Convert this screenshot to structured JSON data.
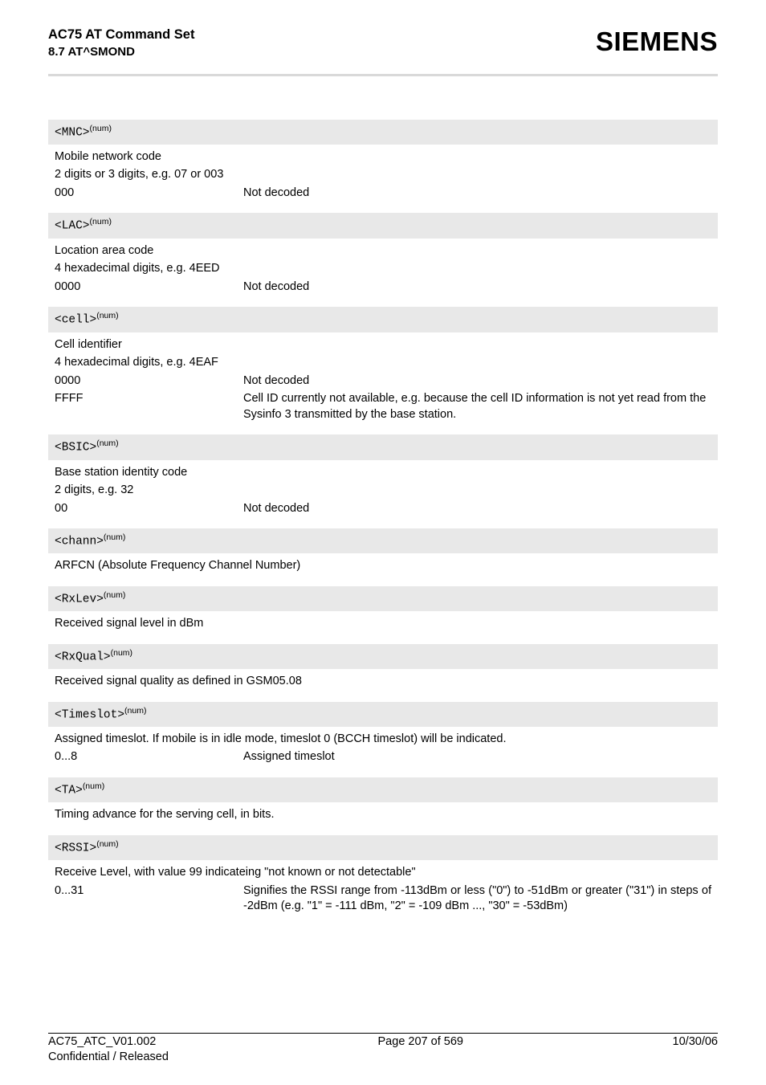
{
  "header": {
    "title": "AC75 AT Command Set",
    "subtitle": "8.7 AT^SMOND",
    "brand": "SIEMENS"
  },
  "colors": {
    "rule": "#d9d9d9",
    "param_head_bg": "#e8e8e8",
    "text": "#000000",
    "bg": "#ffffff"
  },
  "params": [
    {
      "tag": "<MNC>",
      "sup": "(num)",
      "lines": [
        "Mobile network code",
        "2 digits or 3 digits, e.g. 07 or 003"
      ],
      "rows": [
        {
          "k": "000",
          "v": "Not decoded"
        }
      ]
    },
    {
      "tag": "<LAC>",
      "sup": "(num)",
      "lines": [
        "Location area code",
        "4 hexadecimal digits, e.g. 4EED"
      ],
      "rows": [
        {
          "k": "0000",
          "v": "Not decoded"
        }
      ]
    },
    {
      "tag": "<cell>",
      "sup": "(num)",
      "lines": [
        "Cell identifier",
        "4 hexadecimal digits, e.g. 4EAF"
      ],
      "rows": [
        {
          "k": "0000",
          "v": "Not decoded"
        },
        {
          "k": "FFFF",
          "v": "Cell ID currently not available, e.g. because the cell ID information is not yet read from the Sysinfo 3 transmitted by the base station."
        }
      ]
    },
    {
      "tag": "<BSIC>",
      "sup": "(num)",
      "lines": [
        "Base station identity code",
        "2 digits, e.g. 32"
      ],
      "rows": [
        {
          "k": "00",
          "v": "Not decoded"
        }
      ]
    },
    {
      "tag": "<chann>",
      "sup": "(num)",
      "lines": [
        "ARFCN (Absolute Frequency Channel Number)"
      ],
      "rows": []
    },
    {
      "tag": "<RxLev>",
      "sup": "(num)",
      "lines": [
        "Received signal level in dBm"
      ],
      "rows": []
    },
    {
      "tag": "<RxQual>",
      "sup": "(num)",
      "lines": [
        "Received signal quality as defined in GSM05.08"
      ],
      "rows": []
    },
    {
      "tag": "<Timeslot>",
      "sup": "(num)",
      "lines": [
        "Assigned timeslot. If mobile is in idle mode, timeslot 0 (BCCH timeslot) will be indicated."
      ],
      "rows": [
        {
          "k": "0...8",
          "v": "Assigned timeslot"
        }
      ]
    },
    {
      "tag": "<TA>",
      "sup": "(num)",
      "lines": [
        "Timing advance for the serving cell, in bits."
      ],
      "rows": []
    },
    {
      "tag": "<RSSI>",
      "sup": "(num)",
      "lines": [
        "Receive Level, with value 99 indicateing \"not known or not detectable\""
      ],
      "rows": [
        {
          "k": "0...31",
          "v": "Signifies the RSSI range from -113dBm or less (\"0\") to -51dBm or greater (\"31\") in steps of -2dBm (e.g. \"1\" = -111 dBm, \"2\" = -109 dBm ..., \"30\" = -53dBm)",
          "justify": true
        }
      ]
    }
  ],
  "footer": {
    "left1": "AC75_ATC_V01.002",
    "left2": "Confidential / Released",
    "center": "Page 207 of 569",
    "right": "10/30/06"
  }
}
